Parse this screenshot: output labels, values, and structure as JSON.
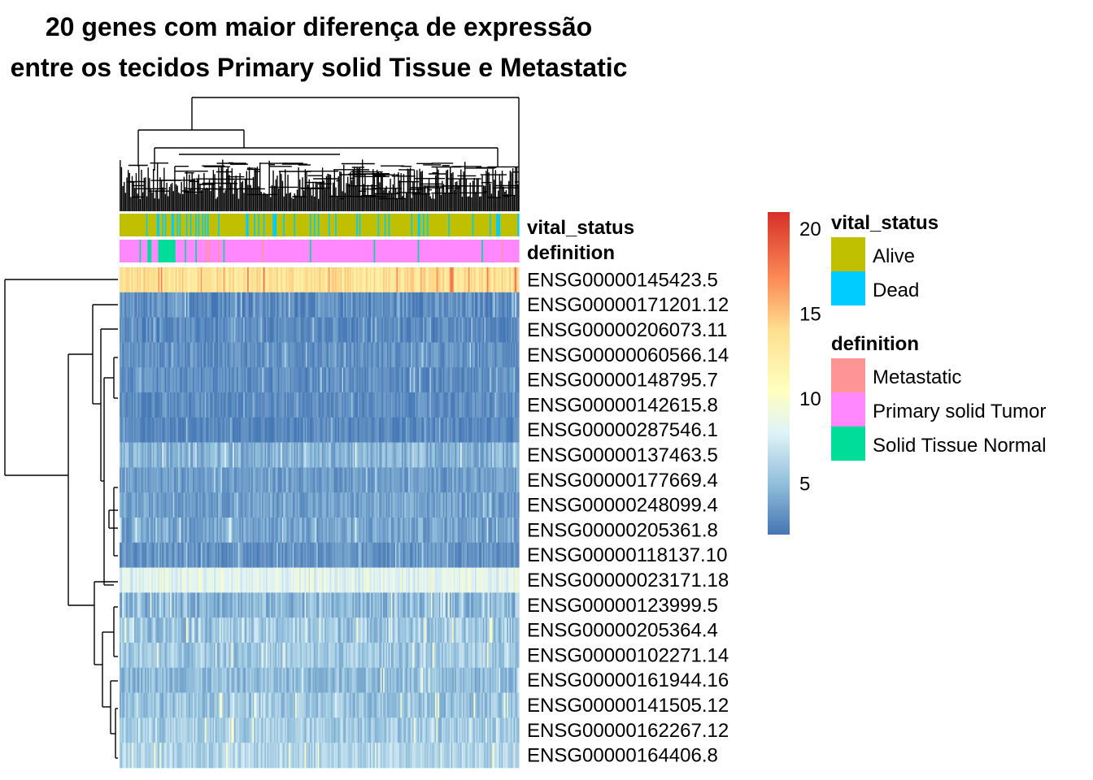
{
  "title_lines": [
    "20 genes com maior diferença de expressão",
    "entre os tecidos Primary solid Tissue e Metastatic"
  ],
  "chart_data": {
    "type": "heatmap",
    "title": "20 genes com maior diferença de expressão entre os tecidos Primary solid Tissue e Metastatic",
    "rows": [
      {
        "gene": "ENSG00000145423.5",
        "mean": 13.5,
        "spread": 1.6
      },
      {
        "gene": "ENSG00000171201.12",
        "mean": 3.0,
        "spread": 1.2
      },
      {
        "gene": "ENSG00000206073.11",
        "mean": 2.8,
        "spread": 0.9
      },
      {
        "gene": "ENSG00000060566.14",
        "mean": 3.2,
        "spread": 1.0
      },
      {
        "gene": "ENSG00000148795.7",
        "mean": 3.0,
        "spread": 1.0
      },
      {
        "gene": "ENSG00000142615.8",
        "mean": 3.0,
        "spread": 0.9
      },
      {
        "gene": "ENSG00000287546.1",
        "mean": 2.8,
        "spread": 0.8
      },
      {
        "gene": "ENSG00000137463.5",
        "mean": 4.6,
        "spread": 1.4
      },
      {
        "gene": "ENSG00000177669.4",
        "mean": 3.6,
        "spread": 1.0
      },
      {
        "gene": "ENSG00000248099.4",
        "mean": 3.8,
        "spread": 1.1
      },
      {
        "gene": "ENSG00000205361.8",
        "mean": 4.0,
        "spread": 1.3
      },
      {
        "gene": "ENSG00000118137.10",
        "mean": 3.2,
        "spread": 1.0
      },
      {
        "gene": "ENSG00000023171.18",
        "mean": 8.2,
        "spread": 1.3
      },
      {
        "gene": "ENSG00000123999.5",
        "mean": 4.8,
        "spread": 1.6
      },
      {
        "gene": "ENSG00000205364.4",
        "mean": 5.6,
        "spread": 1.8
      },
      {
        "gene": "ENSG00000102271.14",
        "mean": 5.6,
        "spread": 1.5
      },
      {
        "gene": "ENSG00000161944.16",
        "mean": 5.0,
        "spread": 1.4
      },
      {
        "gene": "ENSG00000141505.12",
        "mean": 5.4,
        "spread": 1.5
      },
      {
        "gene": "ENSG00000162267.12",
        "mean": 5.8,
        "spread": 1.5
      },
      {
        "gene": "ENSG00000164406.8",
        "mean": 6.2,
        "spread": 1.5
      }
    ],
    "annotation_tracks": [
      "vital_status",
      "definition"
    ],
    "color_scale": {
      "ticks": [
        5,
        10,
        15,
        20
      ],
      "domain": [
        2,
        21
      ],
      "stops": [
        {
          "value": 2,
          "color": "#4575b4"
        },
        {
          "value": 5,
          "color": "#91bfdb"
        },
        {
          "value": 8,
          "color": "#e0f3f8"
        },
        {
          "value": 10.5,
          "color": "#ffffbf"
        },
        {
          "value": 14,
          "color": "#fee090"
        },
        {
          "value": 17,
          "color": "#fc8d59"
        },
        {
          "value": 21,
          "color": "#d73027"
        }
      ]
    },
    "legends": [
      {
        "title": "vital_status",
        "items": [
          {
            "label": "Alive",
            "color": "#c0c000"
          },
          {
            "label": "Dead",
            "color": "#00ccff"
          }
        ]
      },
      {
        "title": "definition",
        "items": [
          {
            "label": "Metastatic",
            "color": "#ff9494"
          },
          {
            "label": "Primary solid Tumor",
            "color": "#ff88ff"
          },
          {
            "label": "Solid Tissue Normal",
            "color": "#00dd99"
          }
        ]
      }
    ],
    "xlabel": "",
    "ylabel": ""
  }
}
